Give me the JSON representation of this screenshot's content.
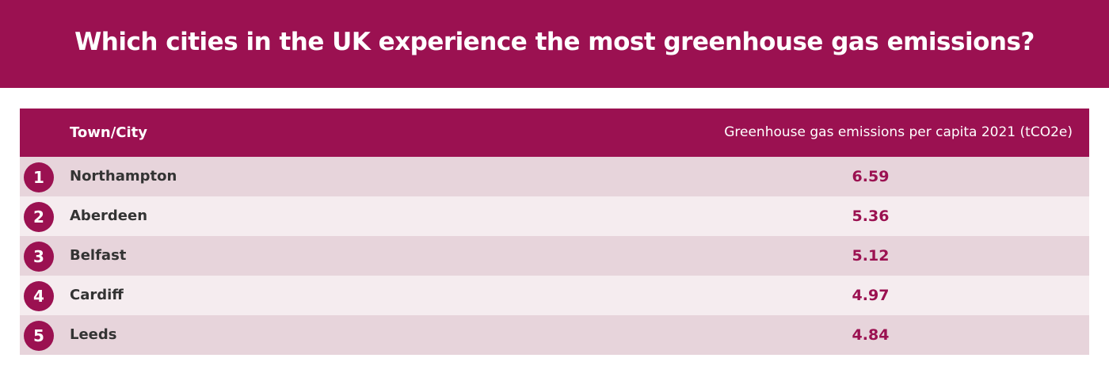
{
  "title": "Which cities in the UK experience the most greenhouse gas emissions?",
  "colors": {
    "brand": "#9b1151",
    "row_odd": "#e7d4db",
    "row_even": "#f5ecef",
    "text_dark": "#333333"
  },
  "chart_data": {
    "type": "table",
    "title": "Which cities in the UK experience the most greenhouse gas emissions?",
    "columns": [
      "Town/City",
      "Greenhouse gas emissions per capita 2021 (tCO2e)"
    ],
    "rows": [
      {
        "rank": "1",
        "city": "Northampton",
        "value": "6.59"
      },
      {
        "rank": "2",
        "city": "Aberdeen",
        "value": "5.36"
      },
      {
        "rank": "3",
        "city": "Belfast",
        "value": "5.12"
      },
      {
        "rank": "4",
        "city": "Cardiff",
        "value": "4.97"
      },
      {
        "rank": "5",
        "city": "Leeds",
        "value": "4.84"
      }
    ]
  }
}
